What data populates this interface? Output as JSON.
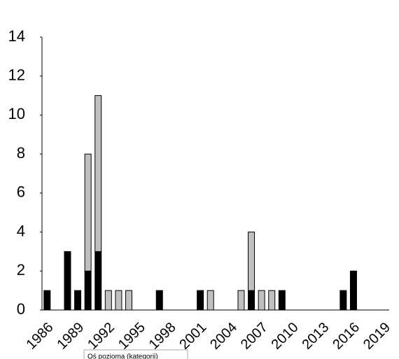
{
  "chart_data": {
    "type": "stacked-bar",
    "categories": [
      "1986",
      null,
      null,
      "1989",
      null,
      null,
      "1992",
      null,
      null,
      "1995",
      null,
      null,
      "1998",
      null,
      null,
      "2001",
      null,
      null,
      "2004",
      null,
      null,
      "2007",
      null,
      null,
      "2010",
      null,
      null,
      "2013",
      null,
      null,
      "2016",
      null,
      null,
      "2019"
    ],
    "series": [
      {
        "color": "#000000",
        "values": [
          1,
          0,
          3,
          1,
          2,
          3,
          0,
          0,
          0,
          0,
          0,
          1,
          0,
          0,
          0,
          1,
          0,
          0,
          0,
          0,
          1,
          0,
          0,
          1,
          0,
          0,
          0,
          0,
          0,
          1,
          2,
          0,
          0,
          0
        ]
      },
      {
        "color": "#bfbfbf",
        "values": [
          0,
          0,
          0,
          0,
          6,
          8,
          1,
          1,
          1,
          0,
          0,
          0,
          0,
          0,
          0,
          0,
          1,
          0,
          0,
          1,
          3,
          1,
          1,
          0,
          0,
          0,
          0,
          0,
          0,
          0,
          0,
          0,
          0,
          0
        ]
      }
    ],
    "ylim": [
      0,
      14
    ],
    "yticks": [
      0,
      2,
      4,
      6,
      8,
      10,
      12,
      14
    ],
    "grid": false,
    "annotation": "Oś pozioma (kategorii)"
  }
}
